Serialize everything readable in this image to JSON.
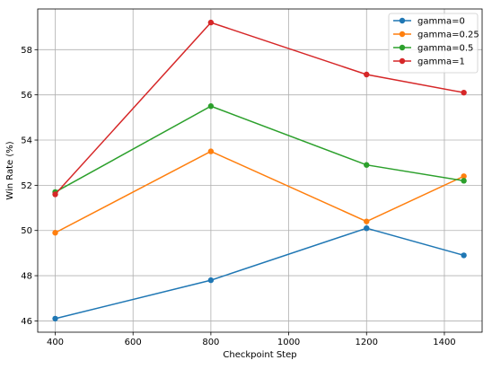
{
  "chart_data": {
    "type": "line",
    "title": "",
    "xlabel": "Checkpoint Step",
    "ylabel": "Win Rate (%)",
    "xlim": [
      355,
      1497
    ],
    "ylim": [
      45.5,
      59.8
    ],
    "xticks": [
      400,
      600,
      800,
      1000,
      1200,
      1400
    ],
    "yticks": [
      46,
      48,
      50,
      52,
      54,
      56,
      58
    ],
    "grid": true,
    "legend_position": "top-right",
    "x": [
      400,
      800,
      1200,
      1450
    ],
    "series": [
      {
        "name": "gamma=0",
        "color": "#1f77b4",
        "values": [
          46.1,
          47.8,
          50.1,
          48.9
        ]
      },
      {
        "name": "gamma=0.25",
        "color": "#ff7f0e",
        "values": [
          49.9,
          53.5,
          50.4,
          52.4
        ]
      },
      {
        "name": "gamma=0.5",
        "color": "#2ca02c",
        "values": [
          51.7,
          55.5,
          52.9,
          52.2
        ]
      },
      {
        "name": "gamma=1",
        "color": "#d62728",
        "values": [
          51.6,
          59.2,
          56.9,
          56.1
        ]
      }
    ]
  }
}
